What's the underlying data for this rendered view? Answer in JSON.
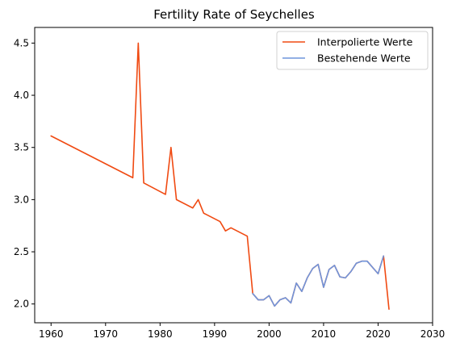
{
  "chart_data": {
    "type": "line",
    "title": "Fertility Rate of Seychelles",
    "xlabel": "",
    "ylabel": "",
    "xlim": [
      1957,
      2030
    ],
    "ylim": [
      1.82,
      4.65
    ],
    "x_ticks": [
      1960,
      1970,
      1980,
      1990,
      2000,
      2010,
      2020,
      2030
    ],
    "y_ticks": [
      2.0,
      2.5,
      3.0,
      3.5,
      4.0,
      4.5
    ],
    "x_tick_labels": [
      "1960",
      "1970",
      "1980",
      "1990",
      "2000",
      "2010",
      "2020",
      "2030"
    ],
    "y_tick_labels": [
      "2.0",
      "2.5",
      "3.0",
      "3.5",
      "4.0",
      "4.5"
    ],
    "grid": false,
    "legend_position": "top-right",
    "series": [
      {
        "name": "Interpolierte Werte",
        "color": "#f04a12",
        "x": [
          1960,
          1975,
          1976,
          1977,
          1981,
          1982,
          1983,
          1986,
          1987,
          1988,
          1991,
          1992,
          1993,
          1996,
          1997,
          1998,
          1999,
          2000,
          2001,
          2002,
          2003,
          2004,
          2005,
          2006,
          2007,
          2008,
          2009,
          2010,
          2011,
          2012,
          2013,
          2014,
          2015,
          2016,
          2017,
          2018,
          2020,
          2021,
          2022
        ],
        "y": [
          3.61,
          3.21,
          4.5,
          3.16,
          3.05,
          3.5,
          3.0,
          2.92,
          3.0,
          2.87,
          2.79,
          2.7,
          2.73,
          2.65,
          2.1,
          2.04,
          2.04,
          2.08,
          1.98,
          2.04,
          2.06,
          2.01,
          2.2,
          2.12,
          2.25,
          2.34,
          2.38,
          2.16,
          2.33,
          2.37,
          2.26,
          2.25,
          2.31,
          2.39,
          2.41,
          2.41,
          2.29,
          2.46,
          1.95
        ]
      },
      {
        "name": "Bestehende Werte",
        "color": "#6f95dc",
        "x": [
          1997,
          1998,
          1999,
          2000,
          2001,
          2002,
          2003,
          2004,
          2005,
          2006,
          2007,
          2008,
          2009,
          2010,
          2011,
          2012,
          2013,
          2014,
          2015,
          2016,
          2017,
          2018,
          2020,
          2021
        ],
        "y": [
          2.1,
          2.04,
          2.04,
          2.08,
          1.98,
          2.04,
          2.06,
          2.01,
          2.2,
          2.12,
          2.25,
          2.34,
          2.38,
          2.16,
          2.33,
          2.37,
          2.26,
          2.25,
          2.31,
          2.39,
          2.41,
          2.41,
          2.29,
          2.46
        ]
      }
    ]
  }
}
